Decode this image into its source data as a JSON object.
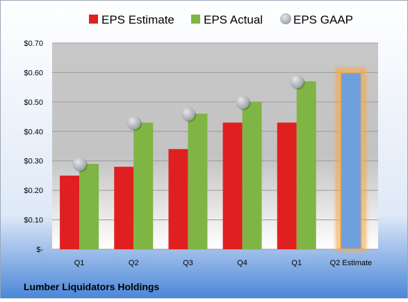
{
  "chart_data": {
    "type": "bar",
    "title": "",
    "caption": "Lumber Liquidators Holdings",
    "xlabel": "",
    "ylabel": "",
    "categories": [
      "Q1",
      "Q2",
      "Q3",
      "Q4",
      "Q1",
      "Q2 Estimate"
    ],
    "y_tick_labels": [
      "$-",
      "$0.10",
      "$0.20",
      "$0.30",
      "$0.40",
      "$0.50",
      "$0.60",
      "$0.70"
    ],
    "y_ticks": [
      0,
      0.1,
      0.2,
      0.3,
      0.4,
      0.5,
      0.6,
      0.7
    ],
    "ylim": [
      0,
      0.7
    ],
    "grid": true,
    "legend_position": "top",
    "series": [
      {
        "name": "EPS Estimate",
        "kind": "bar",
        "color": "#e02020",
        "values": [
          0.25,
          0.28,
          0.34,
          0.43,
          0.43,
          null
        ]
      },
      {
        "name": "EPS Actual",
        "kind": "bar",
        "color": "#7fb545",
        "values": [
          0.29,
          0.43,
          0.46,
          0.5,
          0.57,
          null
        ]
      },
      {
        "name": "EPS GAAP",
        "kind": "marker",
        "color": "#b8bcc4",
        "values": [
          0.29,
          0.43,
          0.46,
          0.5,
          0.57,
          null
        ]
      },
      {
        "name": "",
        "kind": "bar",
        "color": "#6f9fdc",
        "highlight": "#f5a94a",
        "values": [
          null,
          null,
          null,
          null,
          null,
          0.6
        ]
      }
    ]
  }
}
